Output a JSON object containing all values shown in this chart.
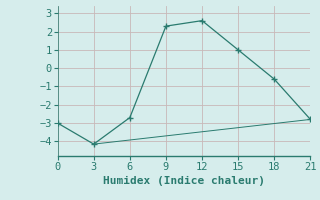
{
  "xlabel": "Humidex (Indice chaleur)",
  "line1_x": [
    0,
    3,
    6,
    9,
    12,
    15,
    18,
    21
  ],
  "line1_y": [
    -3.0,
    -4.15,
    -2.7,
    2.3,
    2.6,
    1.0,
    -0.6,
    -2.8
  ],
  "line2_x": [
    3,
    21
  ],
  "line2_y": [
    -4.15,
    -2.8
  ],
  "line_color": "#2a7b6f",
  "bg_color": "#d6edec",
  "grid_color": "#c8b8b8",
  "ylim": [
    -4.8,
    3.4
  ],
  "xlim": [
    0,
    21
  ],
  "yticks": [
    -4,
    -3,
    -2,
    -1,
    0,
    1,
    2,
    3
  ],
  "xticks": [
    0,
    3,
    6,
    9,
    12,
    15,
    18,
    21
  ],
  "xlabel_fontsize": 8,
  "tick_fontsize": 7.5
}
